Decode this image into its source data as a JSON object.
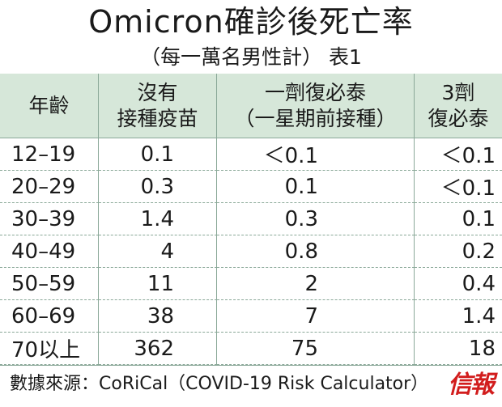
{
  "header": {
    "title": "Omicron確診後死亡率",
    "subtitle": "（每一萬名男性計） 表1"
  },
  "chart_data": {
    "type": "table",
    "columns": [
      "年齡",
      "沒有\n接種疫苗",
      "一劑復必泰\n（一星期前接種）",
      "3劑\n復必泰"
    ],
    "rows": [
      [
        "12–19",
        "0.1",
        "＜0.1",
        "＜0.1"
      ],
      [
        "20–29",
        "0.3",
        "0.1",
        "＜0.1"
      ],
      [
        "30–39",
        "1.4",
        "0.3",
        "0.1"
      ],
      [
        "40–49",
        "4",
        "0.8",
        "0.2"
      ],
      [
        "50–59",
        "11",
        "2",
        "0.4"
      ],
      [
        "60–69",
        "38",
        "7",
        "1.4"
      ],
      [
        "70以上",
        "362",
        "75",
        "18"
      ]
    ]
  },
  "footer": {
    "source": "數據來源：CoRiCal（COVID-19 Risk Calculator）",
    "logo_text": "信報"
  },
  "colors": {
    "header_background": "#d6e7d9",
    "rule": "#8aa898",
    "logo": "#d21d1d"
  }
}
